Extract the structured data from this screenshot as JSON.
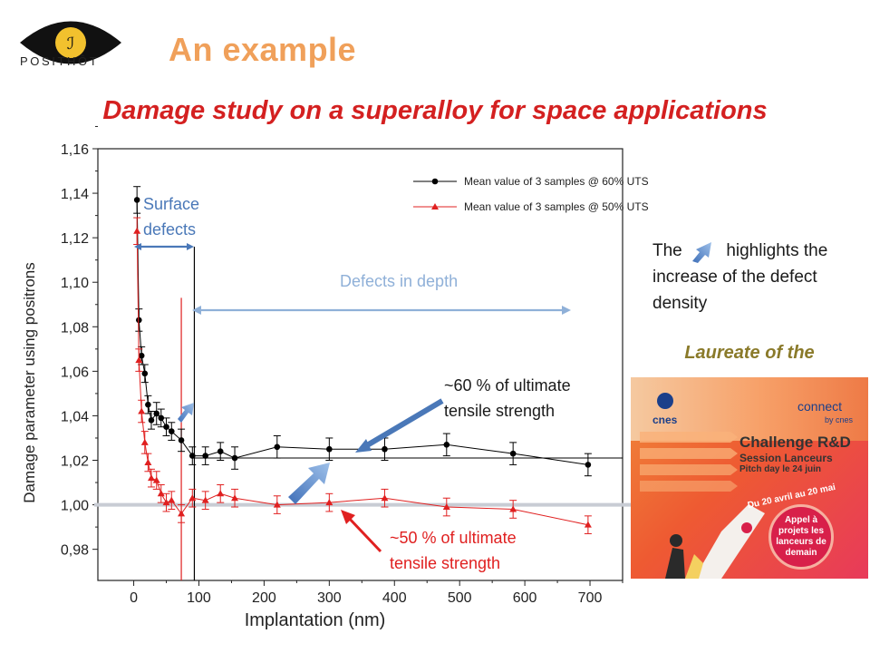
{
  "logo": {
    "text": "POSITHÔT",
    "symbol": "ℐ"
  },
  "title": "An example",
  "subtitle": "Damage study on a superalloy for space applications",
  "side_note": {
    "before": "The",
    "after": "highlights the increase of the defect density",
    "icon": "arrow-up-right-icon"
  },
  "laureate": "Laureate of the",
  "poster": {
    "cnes": "cnes",
    "connect": "connect",
    "connect_sub": "by cnes",
    "heading": "Challenge R&D",
    "subheading": "Session Lanceurs",
    "pitch": "Pitch day le 24 juin",
    "dates": "Du 20 avril au 20 mai",
    "badge": "Appel à projets les lanceurs de demain"
  },
  "colors": {
    "title": "#f0a05a",
    "subtitle": "#d42020",
    "series_60": "#000000",
    "series_50": "#e02020",
    "annot_blue": "#4a78b8",
    "annot_light_blue": "#8fb0d8"
  },
  "chart_data": {
    "type": "scatter",
    "xlabel": "Implantation (nm)",
    "ylabel": "Damage parameter using positrons",
    "xlim": [
      -55,
      750
    ],
    "ylim": [
      0.966,
      1.16
    ],
    "xticks": [
      "0",
      "100",
      "200",
      "300",
      "400",
      "500",
      "600",
      "700"
    ],
    "yticks": [
      "0,98",
      "1,00",
      "1,02",
      "1,04",
      "1,06",
      "1,08",
      "1,10",
      "1,12",
      "1,14",
      "1,16"
    ],
    "legend_position": "top-right",
    "series": [
      {
        "name": "Mean value of 3 samples @ 60% UTS",
        "color": "#000000",
        "marker": "circle",
        "points": [
          {
            "x": 5,
            "y": 1.137,
            "err": 0.006
          },
          {
            "x": 8,
            "y": 1.083,
            "err": 0.005
          },
          {
            "x": 12,
            "y": 1.067,
            "err": 0.004
          },
          {
            "x": 17,
            "y": 1.059,
            "err": 0.004
          },
          {
            "x": 22,
            "y": 1.045,
            "err": 0.004
          },
          {
            "x": 27,
            "y": 1.038,
            "err": 0.004
          },
          {
            "x": 35,
            "y": 1.041,
            "err": 0.005
          },
          {
            "x": 42,
            "y": 1.039,
            "err": 0.004
          },
          {
            "x": 50,
            "y": 1.035,
            "err": 0.004
          },
          {
            "x": 58,
            "y": 1.033,
            "err": 0.004
          },
          {
            "x": 73,
            "y": 1.029,
            "err": 0.005
          },
          {
            "x": 90,
            "y": 1.022,
            "err": 0.004
          },
          {
            "x": 110,
            "y": 1.022,
            "err": 0.004
          },
          {
            "x": 133,
            "y": 1.024,
            "err": 0.004
          },
          {
            "x": 155,
            "y": 1.021,
            "err": 0.005
          },
          {
            "x": 220,
            "y": 1.026,
            "err": 0.005
          },
          {
            "x": 300,
            "y": 1.025,
            "err": 0.005
          },
          {
            "x": 385,
            "y": 1.025,
            "err": 0.005
          },
          {
            "x": 480,
            "y": 1.027,
            "err": 0.005
          },
          {
            "x": 582,
            "y": 1.023,
            "err": 0.005
          },
          {
            "x": 697,
            "y": 1.018,
            "err": 0.005
          }
        ]
      },
      {
        "name": "Mean value of 3 samples @ 50% UTS",
        "color": "#e02020",
        "marker": "triangle",
        "points": [
          {
            "x": 5,
            "y": 1.123,
            "err": 0.006
          },
          {
            "x": 8,
            "y": 1.065,
            "err": 0.005
          },
          {
            "x": 12,
            "y": 1.042,
            "err": 0.005
          },
          {
            "x": 17,
            "y": 1.028,
            "err": 0.005
          },
          {
            "x": 22,
            "y": 1.019,
            "err": 0.004
          },
          {
            "x": 27,
            "y": 1.012,
            "err": 0.004
          },
          {
            "x": 35,
            "y": 1.011,
            "err": 0.004
          },
          {
            "x": 42,
            "y": 1.005,
            "err": 0.004
          },
          {
            "x": 50,
            "y": 1.001,
            "err": 0.004
          },
          {
            "x": 58,
            "y": 1.002,
            "err": 0.004
          },
          {
            "x": 73,
            "y": 0.996,
            "err": 0.004
          },
          {
            "x": 90,
            "y": 1.003,
            "err": 0.004
          },
          {
            "x": 110,
            "y": 1.002,
            "err": 0.004
          },
          {
            "x": 133,
            "y": 1.005,
            "err": 0.004
          },
          {
            "x": 155,
            "y": 1.003,
            "err": 0.004
          },
          {
            "x": 220,
            "y": 1.0,
            "err": 0.004
          },
          {
            "x": 300,
            "y": 1.001,
            "err": 0.004
          },
          {
            "x": 385,
            "y": 1.003,
            "err": 0.004
          },
          {
            "x": 480,
            "y": 0.999,
            "err": 0.004
          },
          {
            "x": 582,
            "y": 0.998,
            "err": 0.004
          },
          {
            "x": 697,
            "y": 0.991,
            "err": 0.004
          }
        ]
      }
    ],
    "reference_lines": [
      {
        "axis": "y",
        "value": 1.0,
        "color": "#c8ccd4"
      },
      {
        "axis": "y",
        "value": 1.021,
        "color": "#000000"
      },
      {
        "axis": "x",
        "value": 93,
        "color": "#000000"
      },
      {
        "axis": "x",
        "value": 73,
        "color": "#e02020"
      }
    ],
    "annotations": {
      "surface_defects": [
        "Surface",
        "defects"
      ],
      "defects_in_depth": "Defects in depth",
      "uts60": [
        "~60 % of ultimate",
        "tensile strength"
      ],
      "uts50": [
        "~50 % of ultimate",
        "tensile strength"
      ]
    }
  }
}
